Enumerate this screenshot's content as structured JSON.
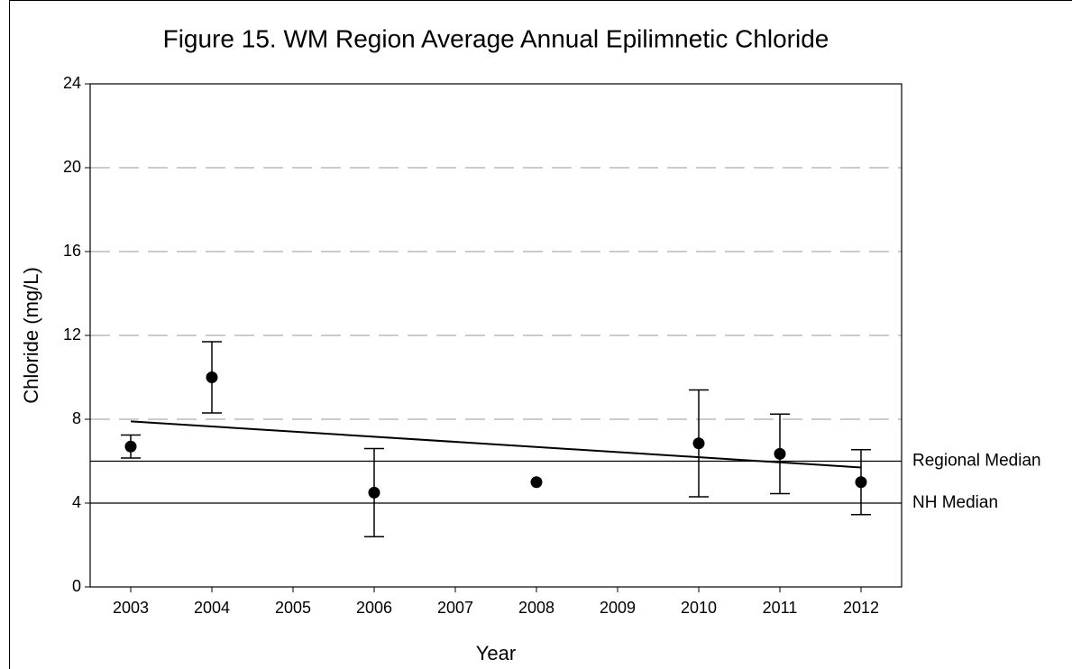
{
  "chart_data": {
    "type": "scatter",
    "title": "Figure 15. WM Region Average Annual Epilimnetic Chloride",
    "x_label": "Year",
    "y_label": "Chloride (mg/L)",
    "x": [
      2003,
      2004,
      2006,
      2008,
      2010,
      2011,
      2012
    ],
    "values": [
      6.7,
      10.0,
      4.5,
      5.0,
      6.85,
      6.35,
      5.0
    ],
    "errors": [
      0.55,
      1.7,
      2.1,
      null,
      2.55,
      1.9,
      1.55
    ],
    "color": "#000000",
    "xlim": [
      2002.5,
      2012.5
    ],
    "xticks": [
      2003,
      2004,
      2005,
      2006,
      2007,
      2008,
      2009,
      2010,
      2011,
      2012
    ],
    "ylim": [
      0,
      24
    ],
    "yticks": [
      0,
      4,
      8,
      12,
      16,
      20,
      24
    ],
    "grid": true,
    "trend": {
      "x": [
        2003,
        2012
      ],
      "values": [
        7.9,
        5.7
      ]
    },
    "reference_lines": [
      {
        "name": "Regional Median",
        "value": 6
      },
      {
        "name": "NH Median",
        "value": 4
      }
    ]
  }
}
